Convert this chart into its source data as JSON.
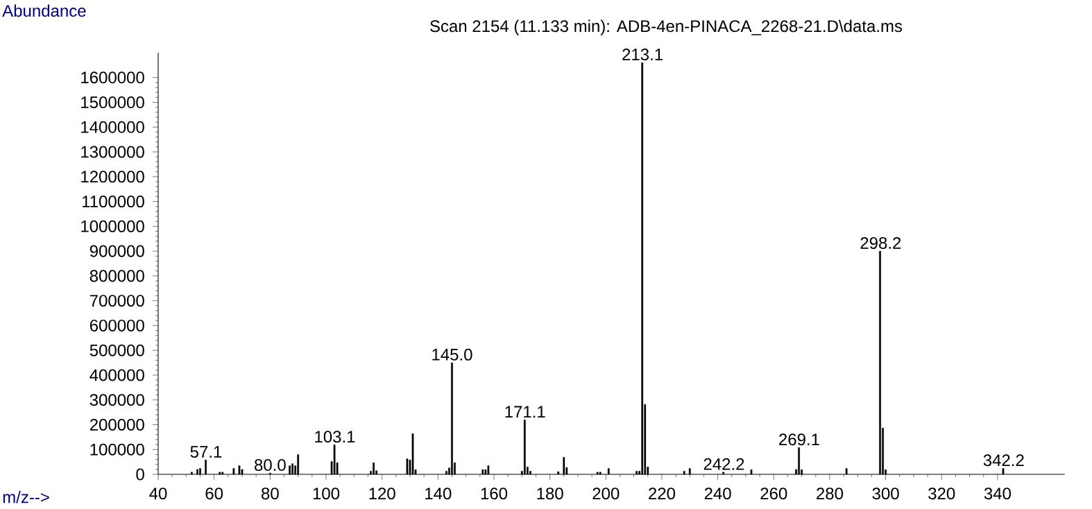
{
  "chart_data": {
    "type": "bar",
    "title": "Scan 2154 (11.133 min): ADB-4en-PINACA_2268-21.D\\data.ms",
    "xlabel": "m/z-->",
    "ylabel": "Abundance",
    "color": "#000000",
    "x": [
      52,
      54,
      55,
      57,
      62,
      63,
      67,
      69,
      70,
      80,
      87,
      88,
      89,
      90,
      102,
      103,
      104,
      116,
      117,
      118,
      129,
      130,
      131,
      132,
      143,
      144,
      145,
      146,
      156,
      157,
      158,
      170,
      171,
      172,
      173,
      183,
      185,
      186,
      197,
      198,
      201,
      211,
      212,
      213,
      214,
      215,
      228,
      230,
      242,
      252,
      268,
      269,
      270,
      286,
      298,
      299,
      300,
      342
    ],
    "values": [
      9000,
      20000,
      24000,
      58000,
      9000,
      9000,
      24000,
      35000,
      20000,
      5000,
      35000,
      43000,
      35000,
      80000,
      52000,
      119000,
      47000,
      13000,
      47000,
      15000,
      63000,
      58000,
      164000,
      19000,
      13000,
      26000,
      450000,
      47000,
      19000,
      19000,
      35000,
      13000,
      220000,
      30000,
      13000,
      11000,
      69000,
      28000,
      9000,
      9000,
      24000,
      13000,
      13000,
      1660000,
      282000,
      30000,
      13000,
      24000,
      9000,
      19000,
      20000,
      108000,
      19000,
      24000,
      900000,
      187000,
      19000,
      24000
    ],
    "xlim": [
      40,
      364
    ],
    "ylim": [
      0,
      1700000
    ],
    "xticks": [
      40,
      60,
      80,
      100,
      120,
      140,
      160,
      180,
      200,
      220,
      240,
      260,
      280,
      300,
      320,
      340
    ],
    "yticks": [
      0,
      100000,
      200000,
      300000,
      400000,
      500000,
      600000,
      700000,
      800000,
      900000,
      1000000,
      1100000,
      1200000,
      1300000,
      1400000,
      1500000,
      1600000
    ],
    "annotations": [
      {
        "text": "57.1",
        "x": 57.1,
        "y": 58000
      },
      {
        "text": "80.0",
        "x": 80.0,
        "y": 5000
      },
      {
        "text": "103.1",
        "x": 103.1,
        "y": 119000
      },
      {
        "text": "145.0",
        "x": 145.0,
        "y": 450000
      },
      {
        "text": "171.1",
        "x": 171.1,
        "y": 220000
      },
      {
        "text": "213.1",
        "x": 213.1,
        "y": 1660000
      },
      {
        "text": "242.2",
        "x": 242.2,
        "y": 9000
      },
      {
        "text": "269.1",
        "x": 269.1,
        "y": 108000
      },
      {
        "text": "298.2",
        "x": 298.2,
        "y": 900000
      },
      {
        "text": "342.2",
        "x": 342.2,
        "y": 24000
      }
    ]
  }
}
